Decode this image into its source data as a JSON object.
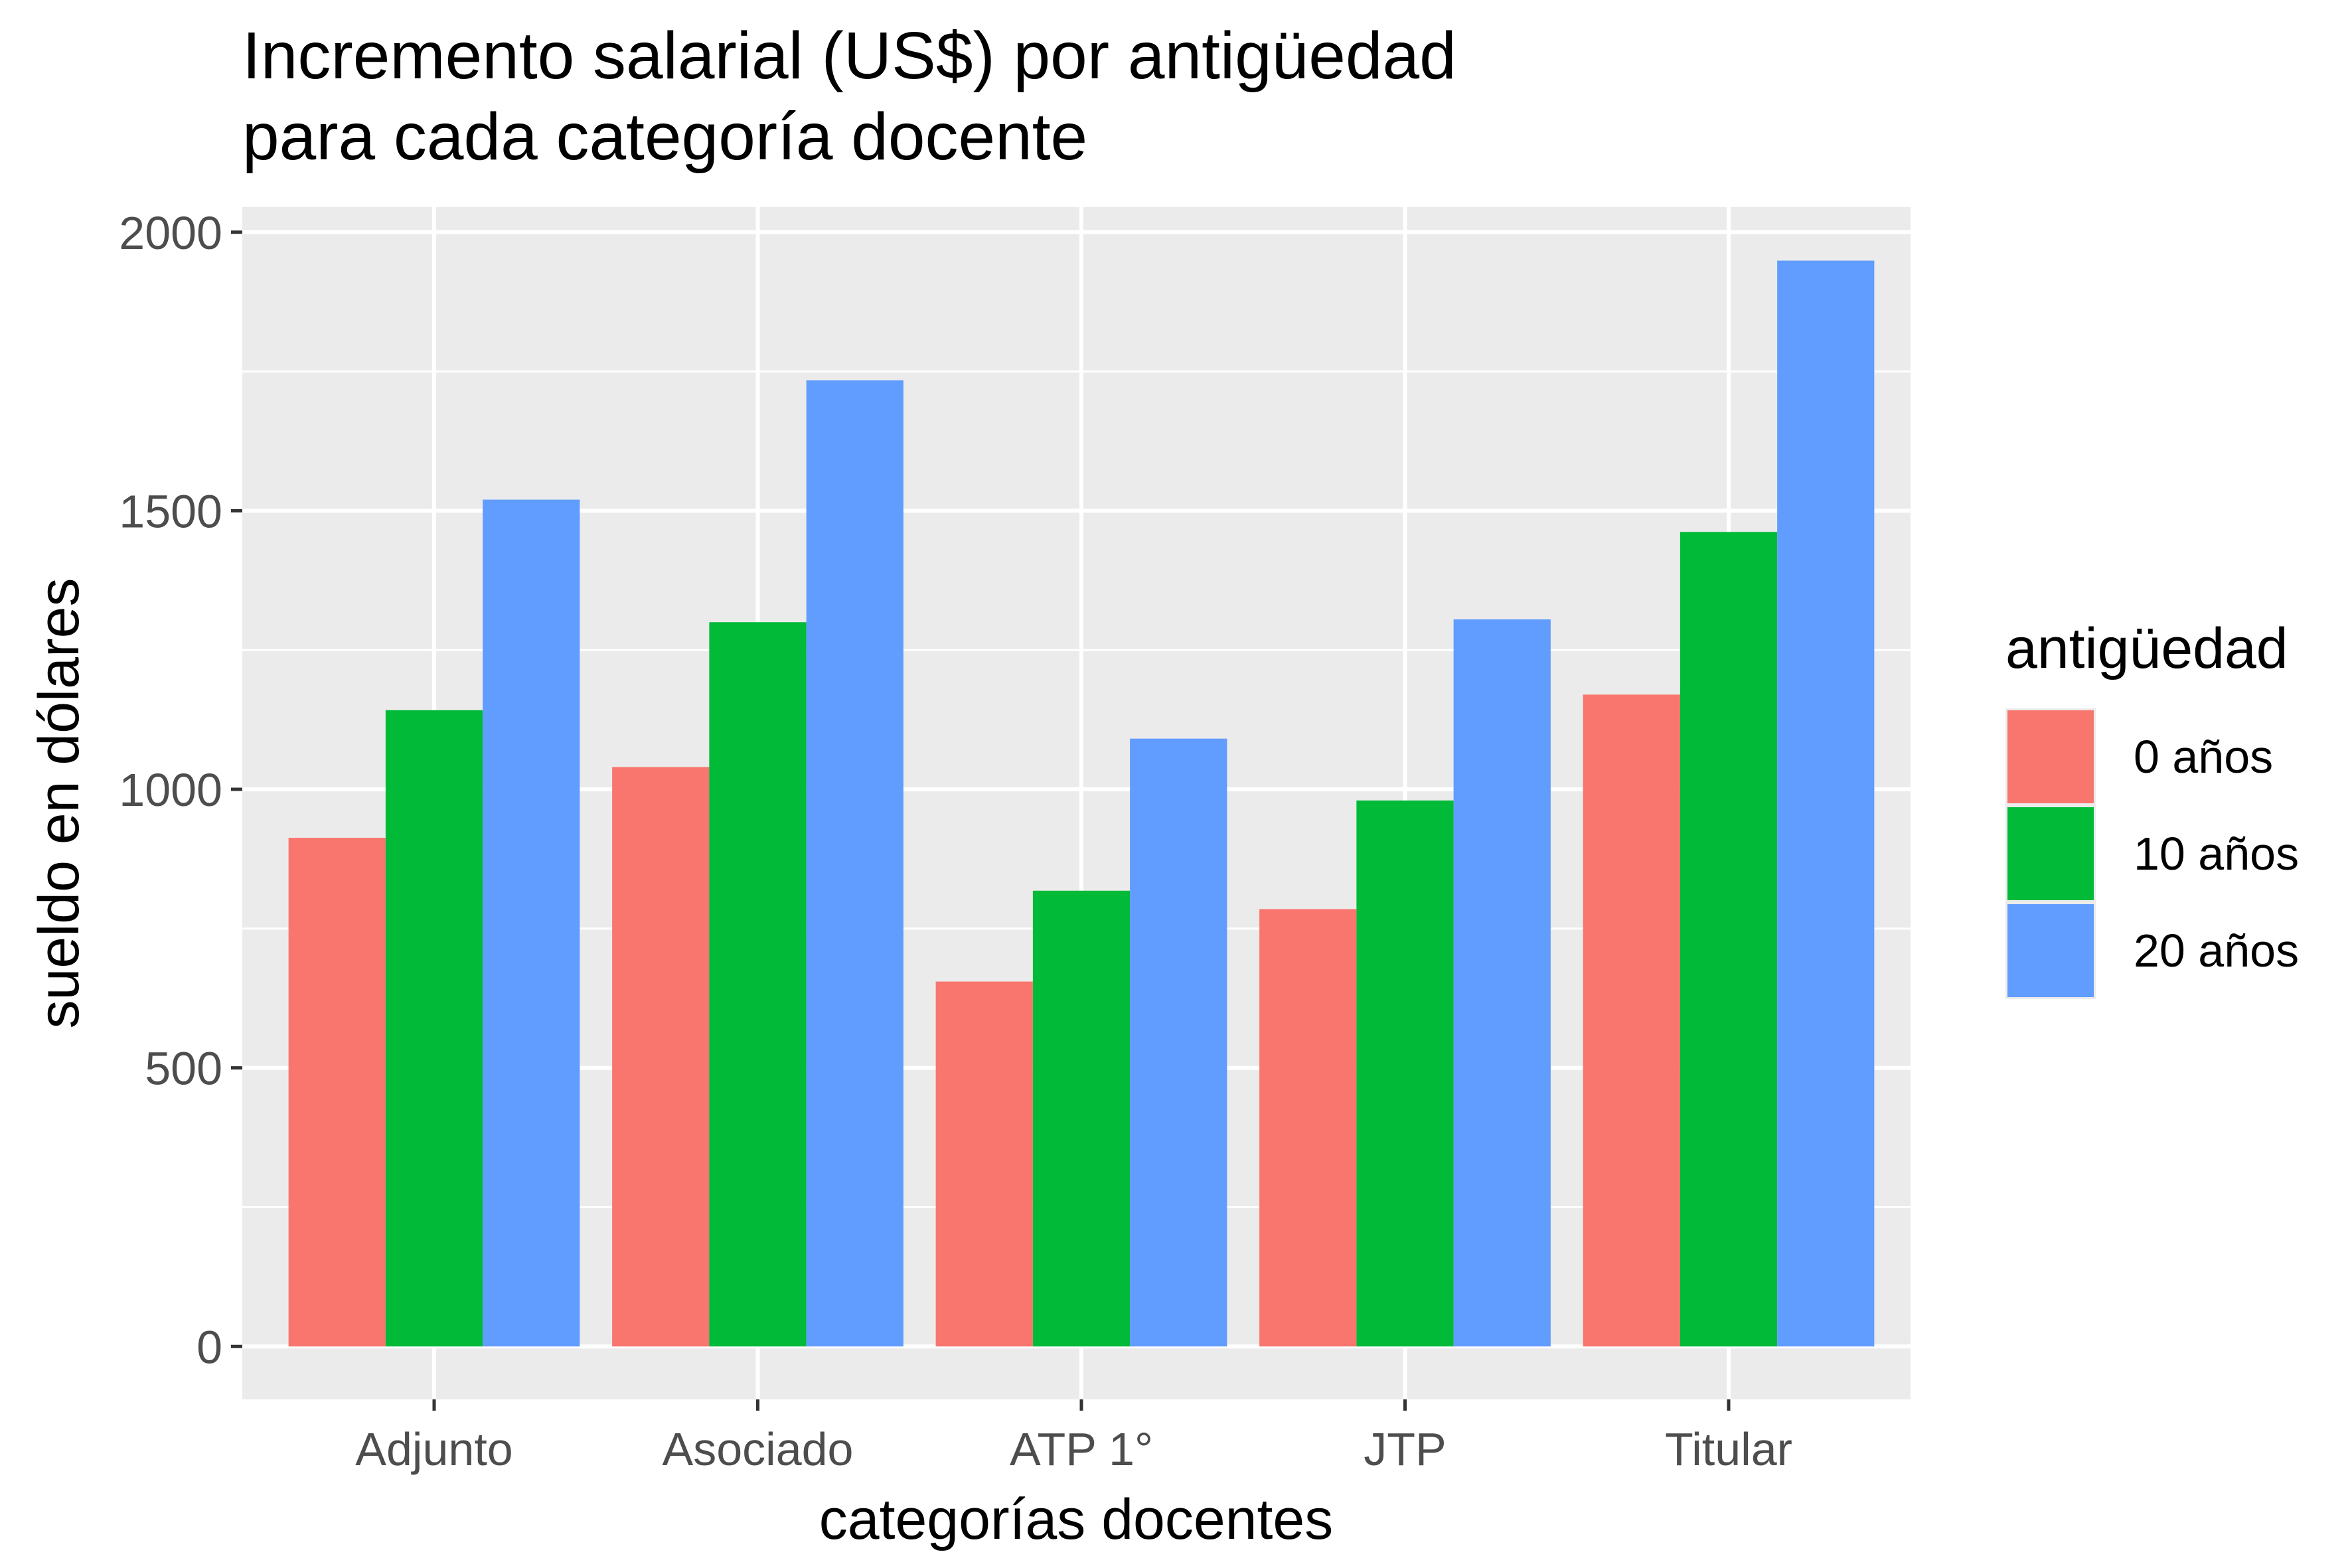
{
  "chart_data": {
    "type": "bar",
    "title_lines": [
      "Incremento salarial (US$) por antigüedad",
      "para cada categoría docente"
    ],
    "xlabel": "categorías docentes",
    "ylabel": "sueldo en dólares",
    "categories": [
      "Adjunto",
      "Asociado",
      "ATP 1°",
      "JTP",
      "Titular"
    ],
    "series": [
      {
        "name": "0 años",
        "color": "#F8766D",
        "values": [
          913,
          1040,
          655,
          785,
          1170
        ]
      },
      {
        "name": "10 años",
        "color": "#00BA38",
        "values": [
          1142,
          1300,
          818,
          980,
          1462
        ]
      },
      {
        "name": "20 años",
        "color": "#619CFF",
        "values": [
          1520,
          1734,
          1091,
          1305,
          1949
        ]
      }
    ],
    "ylim": [
      -95,
      2045
    ],
    "yticks": [
      0,
      500,
      1000,
      1500,
      2000
    ],
    "ytick_labels": [
      "0",
      "500",
      "1000",
      "1500",
      "2000"
    ],
    "grid": true,
    "panel_background": "#EBEBEB",
    "legend": {
      "title": "antigüedad",
      "position": "right"
    }
  }
}
